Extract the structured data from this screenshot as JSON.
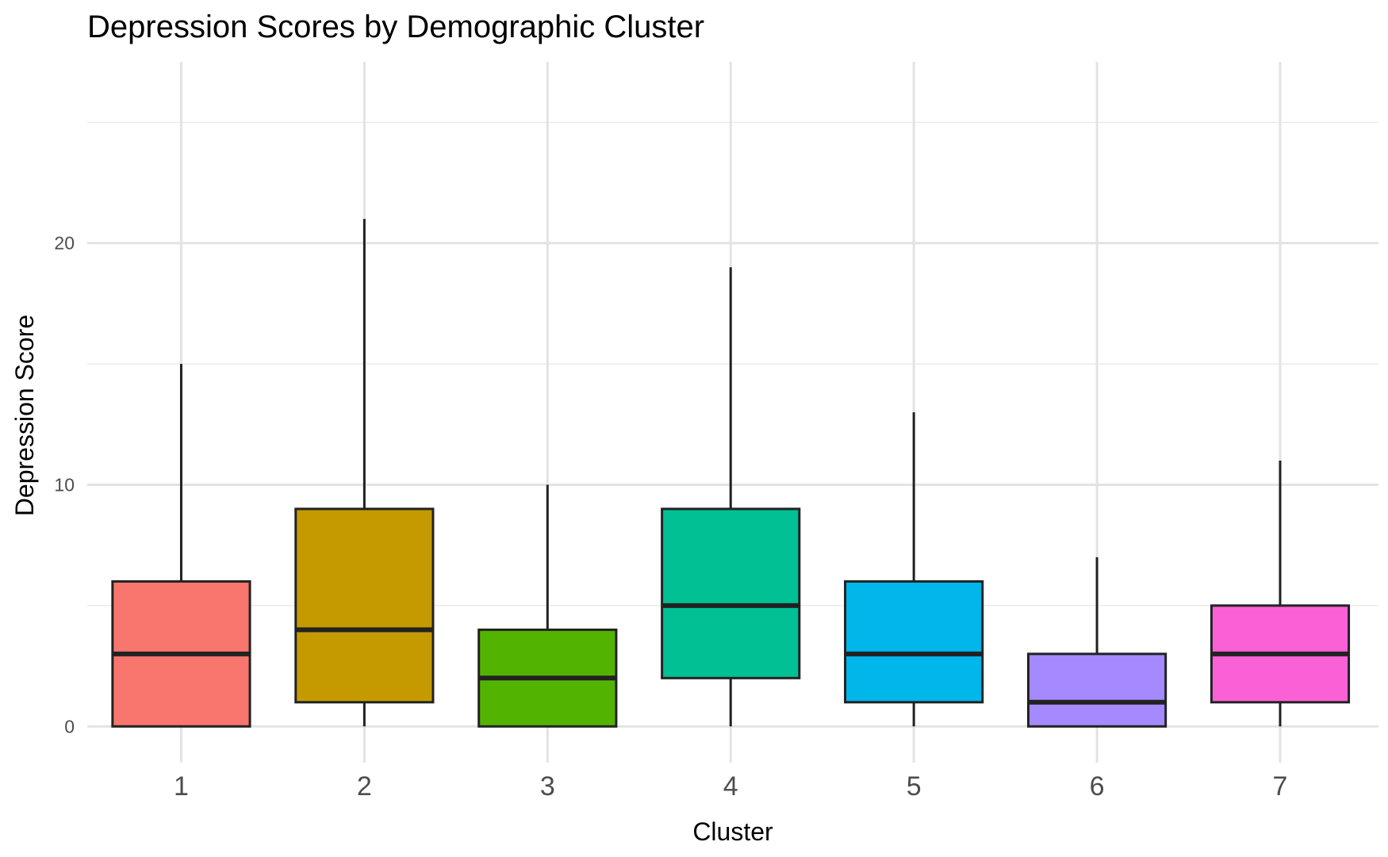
{
  "chart_data": {
    "type": "boxplot",
    "title": "Depression Scores by Demographic Cluster",
    "xlabel": "Cluster",
    "ylabel": "Depression Score",
    "categories": [
      "1",
      "2",
      "3",
      "4",
      "5",
      "6",
      "7"
    ],
    "ylim": [
      -1.5,
      27.5
    ],
    "yticks": [
      0,
      10,
      20
    ],
    "grid": true,
    "legend": "none",
    "boxes": [
      {
        "category": "1",
        "min": 0,
        "q1": 0,
        "median": 3,
        "q3": 6,
        "max": 15,
        "color": "#F8766D"
      },
      {
        "category": "2",
        "min": 0,
        "q1": 1,
        "median": 4,
        "q3": 9,
        "max": 21,
        "color": "#C49A00"
      },
      {
        "category": "3",
        "min": 0,
        "q1": 0,
        "median": 2,
        "q3": 4,
        "max": 10,
        "color": "#53B400"
      },
      {
        "category": "4",
        "min": 0,
        "q1": 2,
        "median": 5,
        "q3": 9,
        "max": 19,
        "color": "#00C094"
      },
      {
        "category": "5",
        "min": 0,
        "q1": 1,
        "median": 3,
        "q3": 6,
        "max": 13,
        "color": "#00B6EB"
      },
      {
        "category": "6",
        "min": 0,
        "q1": 0,
        "median": 1,
        "q3": 3,
        "max": 7,
        "color": "#A58AFF"
      },
      {
        "category": "7",
        "min": 0,
        "q1": 1,
        "median": 3,
        "q3": 5,
        "max": 11,
        "color": "#FB61D7"
      }
    ]
  }
}
